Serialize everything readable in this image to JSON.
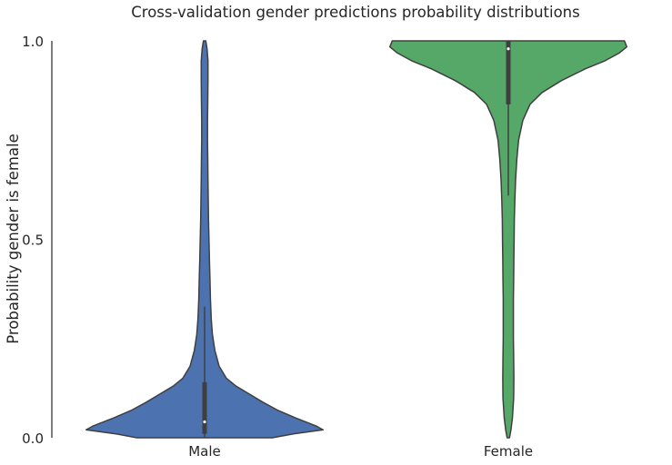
{
  "chart_data": {
    "type": "violin",
    "title": "Cross-validation gender predictions probability distributions",
    "xlabel": "",
    "ylabel": "Probability gender is female",
    "ylim": [
      0.0,
      1.0
    ],
    "yticks": [
      {
        "value": 0.0,
        "label": "0.0"
      },
      {
        "value": 0.5,
        "label": "0.5"
      },
      {
        "value": 1.0,
        "label": "1.0"
      }
    ],
    "grid": false,
    "categories": [
      "Male",
      "Female"
    ],
    "series": [
      {
        "name": "Male",
        "color": "#4c72b0",
        "density": [
          [
            0.0,
            0.56
          ],
          [
            0.01,
            0.74
          ],
          [
            0.02,
            0.98
          ],
          [
            0.03,
            0.92
          ],
          [
            0.05,
            0.75
          ],
          [
            0.07,
            0.6
          ],
          [
            0.09,
            0.48
          ],
          [
            0.11,
            0.37
          ],
          [
            0.13,
            0.26
          ],
          [
            0.15,
            0.18
          ],
          [
            0.18,
            0.12
          ],
          [
            0.22,
            0.085
          ],
          [
            0.26,
            0.065
          ],
          [
            0.3,
            0.055
          ],
          [
            0.35,
            0.048
          ],
          [
            0.4,
            0.044
          ],
          [
            0.45,
            0.04
          ],
          [
            0.5,
            0.036
          ],
          [
            0.55,
            0.032
          ],
          [
            0.6,
            0.03
          ],
          [
            0.65,
            0.028
          ],
          [
            0.7,
            0.026
          ],
          [
            0.75,
            0.024
          ],
          [
            0.8,
            0.024
          ],
          [
            0.85,
            0.026
          ],
          [
            0.9,
            0.028
          ],
          [
            0.95,
            0.028
          ],
          [
            0.98,
            0.02
          ],
          [
            1.0,
            0.01
          ]
        ],
        "box": {
          "q1": 0.01,
          "median": 0.04,
          "q3": 0.14,
          "whisker_low": 0.0,
          "whisker_high": 0.33
        }
      },
      {
        "name": "Female",
        "color": "#55a868",
        "density": [
          [
            0.0,
            0.01
          ],
          [
            0.02,
            0.022
          ],
          [
            0.05,
            0.034
          ],
          [
            0.1,
            0.044
          ],
          [
            0.15,
            0.046
          ],
          [
            0.2,
            0.044
          ],
          [
            0.25,
            0.042
          ],
          [
            0.3,
            0.042
          ],
          [
            0.35,
            0.042
          ],
          [
            0.4,
            0.044
          ],
          [
            0.45,
            0.046
          ],
          [
            0.5,
            0.048
          ],
          [
            0.55,
            0.05
          ],
          [
            0.6,
            0.054
          ],
          [
            0.65,
            0.06
          ],
          [
            0.7,
            0.07
          ],
          [
            0.75,
            0.085
          ],
          [
            0.8,
            0.12
          ],
          [
            0.84,
            0.18
          ],
          [
            0.87,
            0.28
          ],
          [
            0.9,
            0.44
          ],
          [
            0.93,
            0.64
          ],
          [
            0.95,
            0.8
          ],
          [
            0.97,
            0.92
          ],
          [
            0.985,
            0.98
          ],
          [
            1.0,
            0.96
          ]
        ],
        "box": {
          "q1": 0.84,
          "median": 0.98,
          "q3": 1.0,
          "whisker_low": 0.61,
          "whisker_high": 1.0
        }
      }
    ]
  }
}
